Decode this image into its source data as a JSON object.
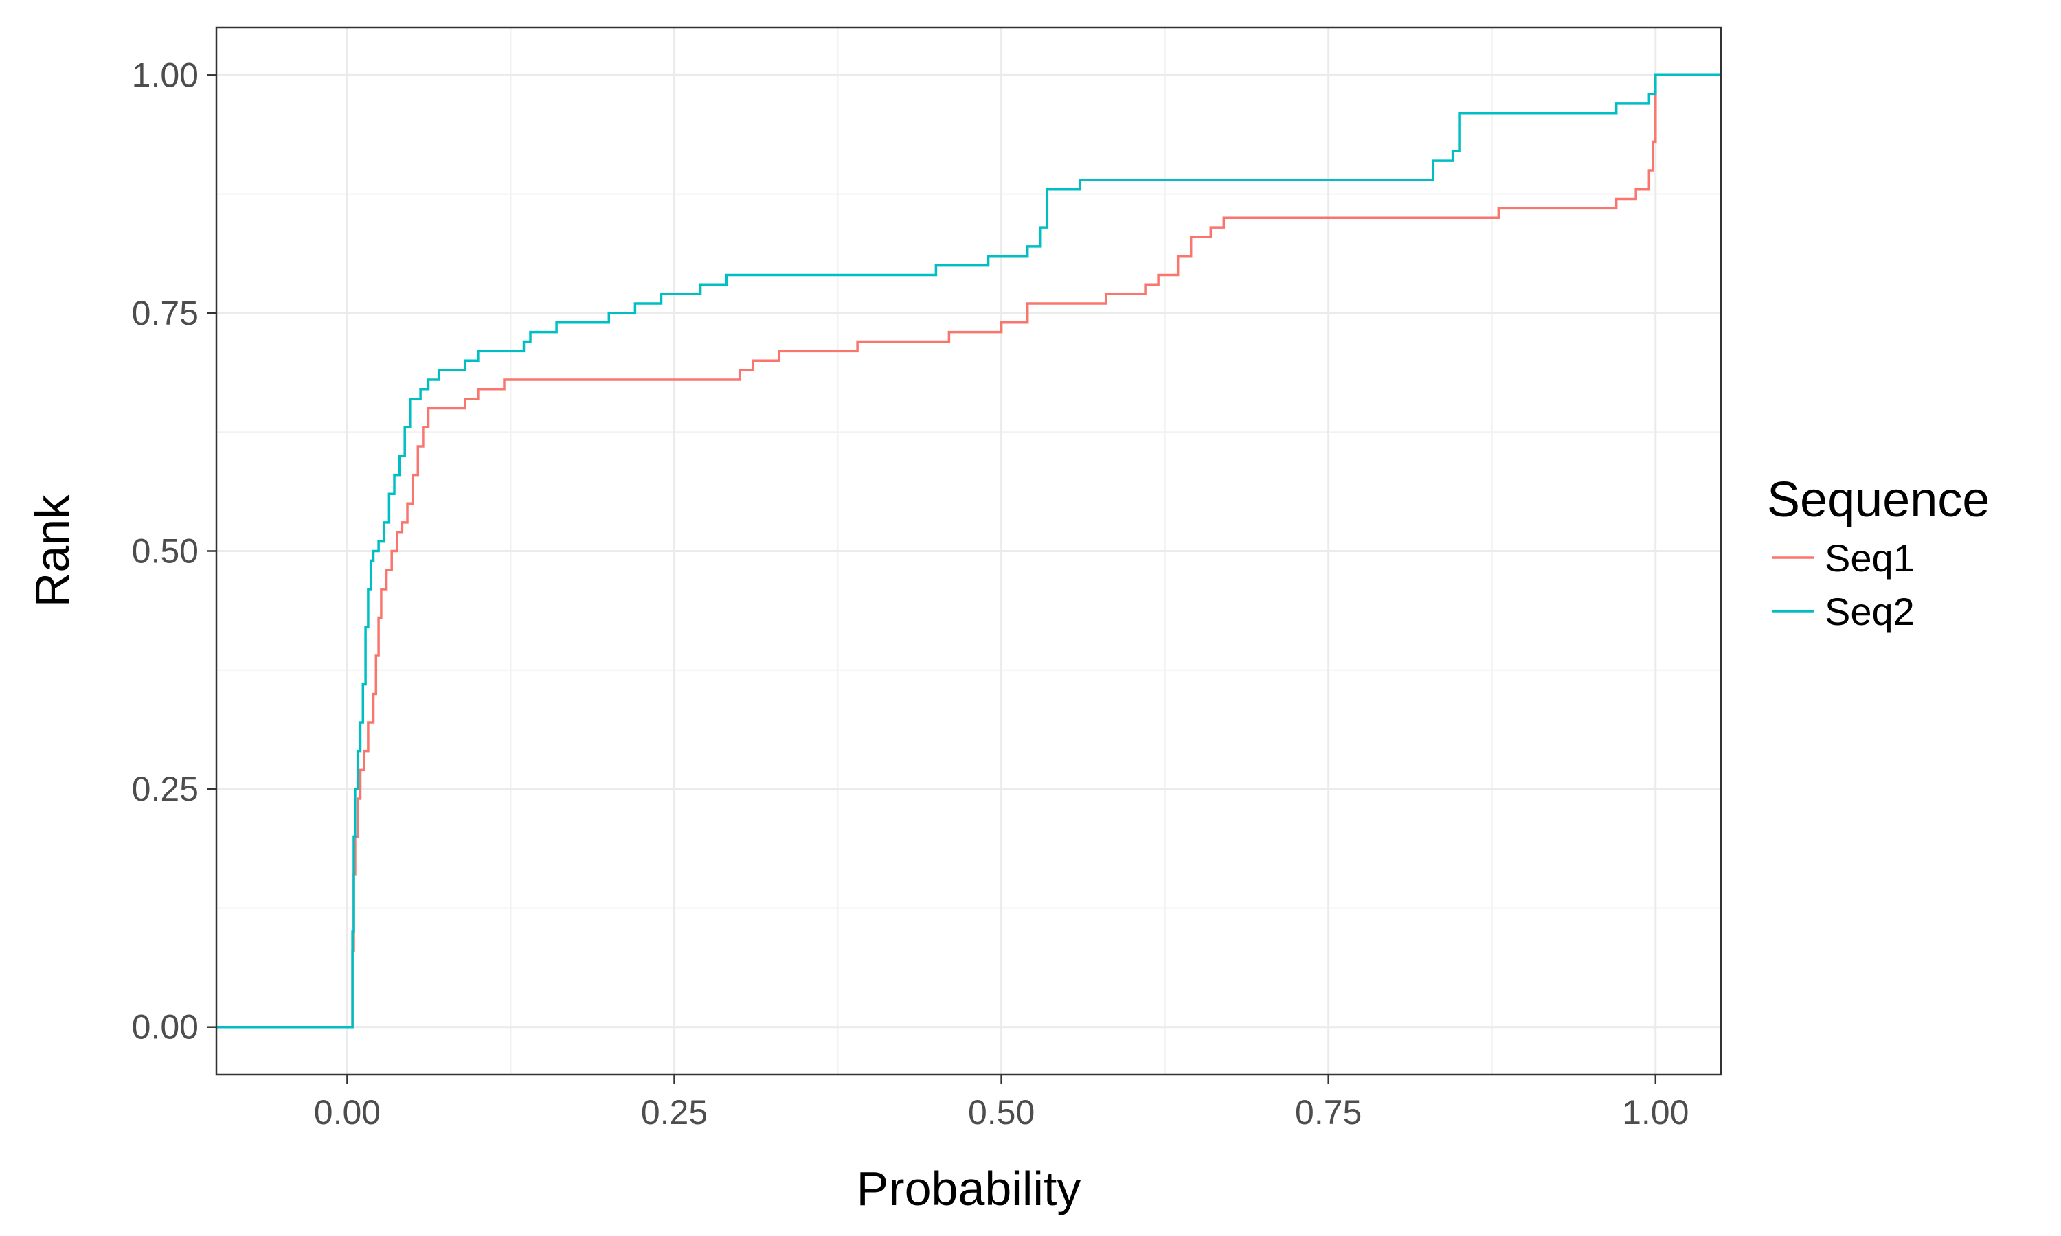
{
  "chart_data": {
    "type": "line",
    "step": true,
    "xlabel": "Probability",
    "ylabel": "Rank",
    "xlim": [
      -0.1,
      1.05
    ],
    "ylim": [
      -0.05,
      1.05
    ],
    "xticks": [
      0.0,
      0.25,
      0.5,
      0.75,
      1.0
    ],
    "xtick_labels": [
      "0.00",
      "0.25",
      "0.50",
      "0.75",
      "1.00"
    ],
    "yticks": [
      0.0,
      0.25,
      0.5,
      0.75,
      1.0
    ],
    "ytick_labels": [
      "0.00",
      "0.25",
      "0.50",
      "0.75",
      "1.00"
    ],
    "grid": true,
    "legend": {
      "title": "Sequence",
      "position": "right"
    },
    "series": [
      {
        "name": "Seq1",
        "color": "#F8766D",
        "points": [
          [
            -0.1,
            0.0
          ],
          [
            0.003,
            0.0
          ],
          [
            0.004,
            0.08
          ],
          [
            0.005,
            0.16
          ],
          [
            0.006,
            0.2
          ],
          [
            0.008,
            0.24
          ],
          [
            0.01,
            0.27
          ],
          [
            0.013,
            0.29
          ],
          [
            0.016,
            0.32
          ],
          [
            0.02,
            0.35
          ],
          [
            0.022,
            0.39
          ],
          [
            0.024,
            0.43
          ],
          [
            0.026,
            0.46
          ],
          [
            0.03,
            0.48
          ],
          [
            0.034,
            0.5
          ],
          [
            0.038,
            0.52
          ],
          [
            0.042,
            0.53
          ],
          [
            0.046,
            0.55
          ],
          [
            0.05,
            0.58
          ],
          [
            0.054,
            0.61
          ],
          [
            0.058,
            0.63
          ],
          [
            0.062,
            0.65
          ],
          [
            0.09,
            0.66
          ],
          [
            0.1,
            0.67
          ],
          [
            0.12,
            0.68
          ],
          [
            0.3,
            0.69
          ],
          [
            0.31,
            0.7
          ],
          [
            0.33,
            0.71
          ],
          [
            0.39,
            0.72
          ],
          [
            0.46,
            0.73
          ],
          [
            0.5,
            0.74
          ],
          [
            0.52,
            0.76
          ],
          [
            0.58,
            0.77
          ],
          [
            0.61,
            0.78
          ],
          [
            0.62,
            0.79
          ],
          [
            0.635,
            0.81
          ],
          [
            0.645,
            0.83
          ],
          [
            0.66,
            0.84
          ],
          [
            0.67,
            0.85
          ],
          [
            0.88,
            0.86
          ],
          [
            0.97,
            0.87
          ],
          [
            0.985,
            0.88
          ],
          [
            0.995,
            0.9
          ],
          [
            0.998,
            0.93
          ],
          [
            1.0,
            1.0
          ],
          [
            1.05,
            1.0
          ]
        ]
      },
      {
        "name": "Seq2",
        "color": "#00BFC4",
        "points": [
          [
            -0.1,
            0.0
          ],
          [
            0.003,
            0.0
          ],
          [
            0.004,
            0.1
          ],
          [
            0.005,
            0.2
          ],
          [
            0.006,
            0.25
          ],
          [
            0.008,
            0.29
          ],
          [
            0.01,
            0.32
          ],
          [
            0.012,
            0.36
          ],
          [
            0.014,
            0.42
          ],
          [
            0.016,
            0.46
          ],
          [
            0.018,
            0.49
          ],
          [
            0.02,
            0.5
          ],
          [
            0.024,
            0.51
          ],
          [
            0.028,
            0.53
          ],
          [
            0.032,
            0.56
          ],
          [
            0.036,
            0.58
          ],
          [
            0.04,
            0.6
          ],
          [
            0.044,
            0.63
          ],
          [
            0.048,
            0.66
          ],
          [
            0.056,
            0.67
          ],
          [
            0.062,
            0.68
          ],
          [
            0.07,
            0.69
          ],
          [
            0.09,
            0.7
          ],
          [
            0.1,
            0.71
          ],
          [
            0.135,
            0.72
          ],
          [
            0.14,
            0.73
          ],
          [
            0.16,
            0.74
          ],
          [
            0.2,
            0.75
          ],
          [
            0.22,
            0.76
          ],
          [
            0.24,
            0.77
          ],
          [
            0.27,
            0.78
          ],
          [
            0.29,
            0.79
          ],
          [
            0.4,
            0.79
          ],
          [
            0.45,
            0.8
          ],
          [
            0.49,
            0.81
          ],
          [
            0.52,
            0.82
          ],
          [
            0.53,
            0.84
          ],
          [
            0.535,
            0.88
          ],
          [
            0.56,
            0.89
          ],
          [
            0.8,
            0.89
          ],
          [
            0.83,
            0.91
          ],
          [
            0.845,
            0.92
          ],
          [
            0.85,
            0.96
          ],
          [
            0.97,
            0.97
          ],
          [
            0.995,
            0.98
          ],
          [
            1.0,
            1.0
          ],
          [
            1.05,
            1.0
          ]
        ]
      }
    ]
  }
}
